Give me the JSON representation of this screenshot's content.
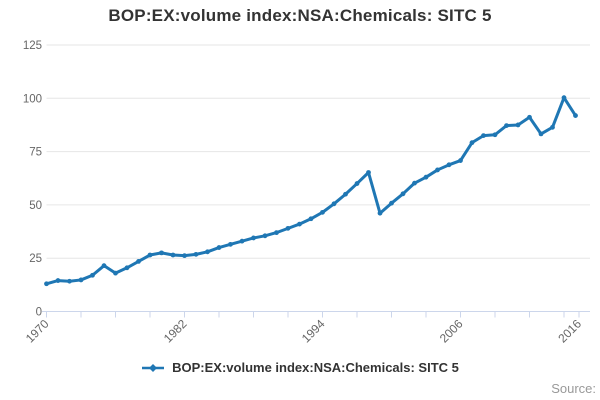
{
  "title": "BOP:EX:volume index:NSA:Chemicals: SITC 5",
  "source_label": "Source:",
  "legend": {
    "items": [
      {
        "label": "BOP:EX:volume index:NSA:Chemicals: SITC 5",
        "marker": "line-with-diamond"
      }
    ]
  },
  "colors": {
    "series_blue": "#1f77b4",
    "gridline": "#e6e6e6",
    "axis_line": "#ccd6eb",
    "tick_label": "#666666",
    "title_text": "#333333",
    "legend_text": "#333333",
    "source_text": "#999999",
    "background": "#ffffff"
  },
  "chart_data": {
    "type": "line",
    "title": "BOP:EX:volume index:NSA:Chemicals: SITC 5",
    "xlabel": "",
    "ylabel": "",
    "ylim": [
      0,
      125
    ],
    "y_ticks": [
      0,
      25,
      50,
      75,
      100,
      125
    ],
    "grid": true,
    "legend_position": "bottom",
    "x_axis": {
      "labeled_ticks": [
        1970,
        1982,
        1994,
        2006,
        2016
      ],
      "minor_tick_step_years": 3,
      "label_rotation_deg": -45
    },
    "series": [
      {
        "name": "BOP:EX:volume index:NSA:Chemicals: SITC 5",
        "color": "#1f77b4",
        "marker": "dot",
        "years": [
          1970,
          1971,
          1972,
          1973,
          1974,
          1975,
          1976,
          1977,
          1978,
          1979,
          1980,
          1981,
          1982,
          1983,
          1984,
          1985,
          1986,
          1987,
          1988,
          1989,
          1990,
          1991,
          1992,
          1993,
          1994,
          1995,
          1996,
          1997,
          1998,
          1999,
          2000,
          2001,
          2002,
          2003,
          2004,
          2005,
          2006,
          2007,
          2008,
          2009,
          2010,
          2011,
          2012,
          2013,
          2014,
          2015,
          2016
        ],
        "values": [
          13.0,
          14.5,
          14.2,
          14.8,
          17.0,
          21.5,
          18.0,
          20.5,
          23.5,
          26.5,
          27.5,
          26.5,
          26.2,
          26.8,
          28.0,
          30.0,
          31.5,
          33.0,
          34.5,
          35.5,
          37.0,
          39.0,
          41.0,
          43.5,
          46.5,
          50.5,
          55.0,
          60.0,
          65.2,
          46.1,
          50.8,
          55.2,
          60.2,
          63.0,
          66.4,
          68.8,
          70.8,
          79.2,
          82.5,
          82.9,
          87.2,
          87.5,
          91.1,
          83.3,
          86.4,
          100.3,
          91.9
        ]
      }
    ]
  }
}
